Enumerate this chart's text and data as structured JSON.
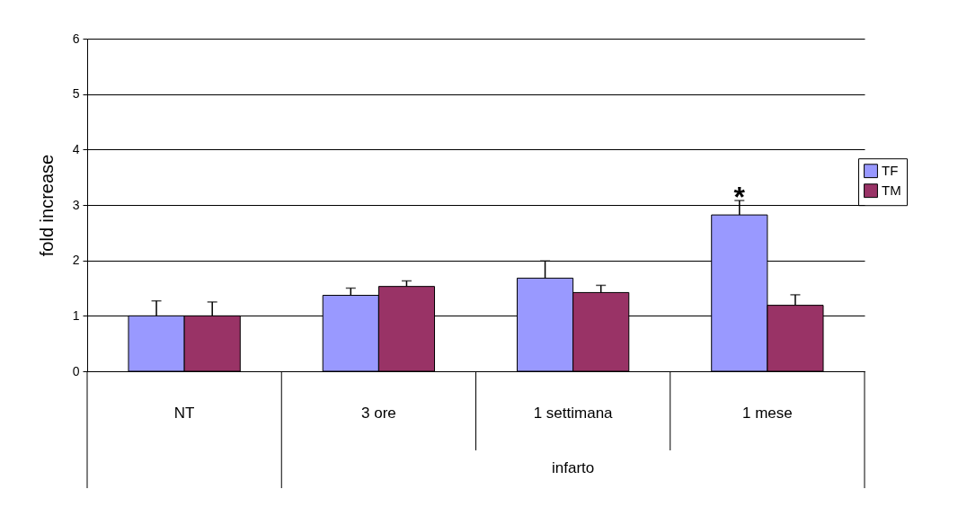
{
  "chart_data": {
    "type": "bar",
    "ylabel": "fold increase",
    "categories": [
      "NT",
      "3 ore",
      "1 settimana",
      "1 mese"
    ],
    "series": [
      {
        "name": "TF",
        "color": "#9999ff",
        "values": [
          1.0,
          1.37,
          1.68,
          2.82
        ],
        "errors": [
          [
            1.0,
            1.27
          ],
          [
            1.37,
            1.5
          ],
          [
            1.68,
            1.99
          ],
          [
            2.82,
            3.08
          ]
        ]
      },
      {
        "name": "TM",
        "color": "#993366",
        "values": [
          1.0,
          1.53,
          1.42,
          1.19
        ],
        "errors": [
          [
            1.0,
            1.25
          ],
          [
            1.53,
            1.63
          ],
          [
            1.42,
            1.55
          ],
          [
            1.19,
            1.38
          ]
        ]
      }
    ],
    "ylim": [
      0,
      6
    ],
    "yticks": [
      0,
      1,
      2,
      3,
      4,
      5,
      6
    ],
    "grid": "y",
    "legend": "right",
    "annotations": [
      "*",
      "infarto"
    ]
  }
}
